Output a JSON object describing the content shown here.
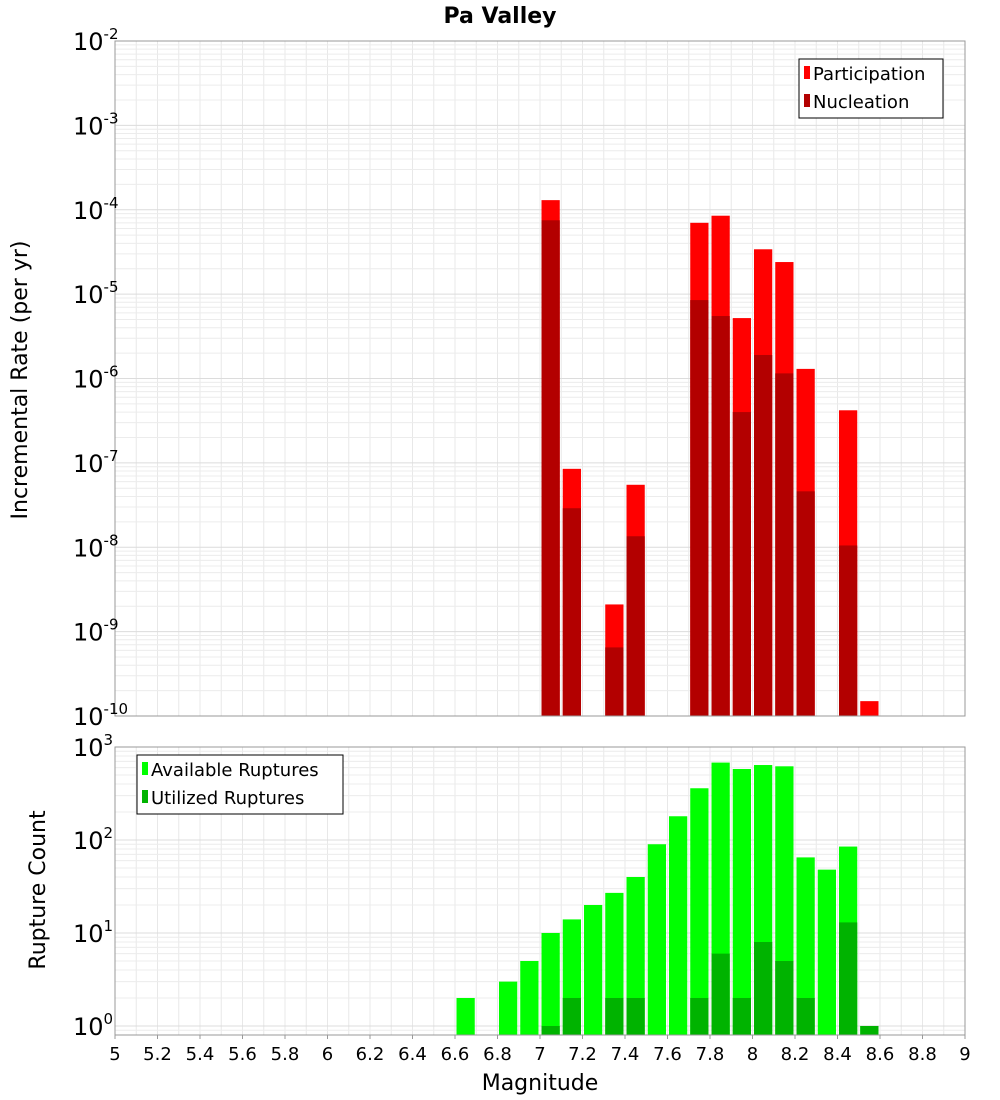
{
  "chart_data": [
    {
      "type": "bar",
      "title": "Pa Valley",
      "ylabel": "Incremental Rate (per yr)",
      "xlabel": "",
      "xlim": [
        5,
        9
      ],
      "ylim": [
        1e-10,
        0.01
      ],
      "yscale": "log",
      "bin_width": 0.1,
      "x_ticks": [
        "5",
        "5.2",
        "5.4",
        "5.6",
        "5.8",
        "6",
        "6.2",
        "6.4",
        "6.6",
        "6.8",
        "7",
        "7.2",
        "7.4",
        "7.6",
        "7.8",
        "8",
        "8.2",
        "8.4",
        "8.6",
        "8.8",
        "9"
      ],
      "y_ticks": [
        {
          "base": "10",
          "exp": "-2"
        },
        {
          "base": "10",
          "exp": "-3"
        },
        {
          "base": "10",
          "exp": "-4"
        },
        {
          "base": "10",
          "exp": "-5"
        },
        {
          "base": "10",
          "exp": "-6"
        },
        {
          "base": "10",
          "exp": "-7"
        },
        {
          "base": "10",
          "exp": "-8"
        },
        {
          "base": "10",
          "exp": "-9"
        },
        {
          "base": "10",
          "exp": "-10"
        }
      ],
      "legend": {
        "position": "top-right"
      },
      "series": [
        {
          "name": "Participation",
          "color": "#ff0000",
          "x": [
            7.05,
            7.15,
            7.35,
            7.45,
            7.75,
            7.85,
            7.95,
            8.05,
            8.15,
            8.25,
            8.45,
            8.55
          ],
          "values": [
            0.00013,
            8.5e-08,
            2.1e-09,
            5.5e-08,
            7e-05,
            8.5e-05,
            5.2e-06,
            3.4e-05,
            2.4e-05,
            1.3e-06,
            4.2e-07,
            1.5e-10
          ]
        },
        {
          "name": "Nucleation",
          "color": "#b30000",
          "x": [
            7.05,
            7.15,
            7.35,
            7.45,
            7.75,
            7.85,
            7.95,
            8.05,
            8.15,
            8.25,
            8.45
          ],
          "values": [
            7.5e-05,
            2.9e-08,
            6.5e-10,
            1.35e-08,
            8.5e-06,
            5.5e-06,
            4e-07,
            1.9e-06,
            1.15e-06,
            4.6e-08,
            1.05e-08
          ]
        }
      ]
    },
    {
      "type": "bar",
      "title": "",
      "ylabel": "Rupture Count",
      "xlabel": "Magnitude",
      "xlim": [
        5,
        9
      ],
      "ylim": [
        0.8,
        1000
      ],
      "yscale": "log",
      "bin_width": 0.1,
      "x_ticks": [
        "5",
        "5.2",
        "5.4",
        "5.6",
        "5.8",
        "6",
        "6.2",
        "6.4",
        "6.6",
        "6.8",
        "7",
        "7.2",
        "7.4",
        "7.6",
        "7.8",
        "8",
        "8.2",
        "8.4",
        "8.6",
        "8.8",
        "9"
      ],
      "y_ticks": [
        {
          "base": "10",
          "exp": "3"
        },
        {
          "base": "10",
          "exp": "2"
        },
        {
          "base": "10",
          "exp": "1"
        },
        {
          "base": "10",
          "exp": "0"
        }
      ],
      "legend": {
        "position": "top-left"
      },
      "series": [
        {
          "name": "Available Ruptures",
          "color": "#00ff00",
          "x": [
            6.65,
            6.85,
            6.95,
            7.05,
            7.15,
            7.25,
            7.35,
            7.45,
            7.55,
            7.65,
            7.75,
            7.85,
            7.95,
            8.05,
            8.15,
            8.25,
            8.35,
            8.45,
            8.55
          ],
          "values": [
            2,
            3,
            5,
            10,
            14,
            20,
            27,
            40,
            90,
            180,
            360,
            680,
            580,
            640,
            620,
            65,
            48,
            85,
            1
          ]
        },
        {
          "name": "Utilized Ruptures",
          "color": "#00b300",
          "x": [
            7.05,
            7.15,
            7.35,
            7.45,
            7.75,
            7.85,
            7.95,
            8.05,
            8.15,
            8.25,
            8.45,
            8.55
          ],
          "values": [
            1,
            2,
            2,
            2,
            2,
            6,
            2,
            8,
            5,
            2,
            13,
            1
          ]
        }
      ]
    }
  ]
}
